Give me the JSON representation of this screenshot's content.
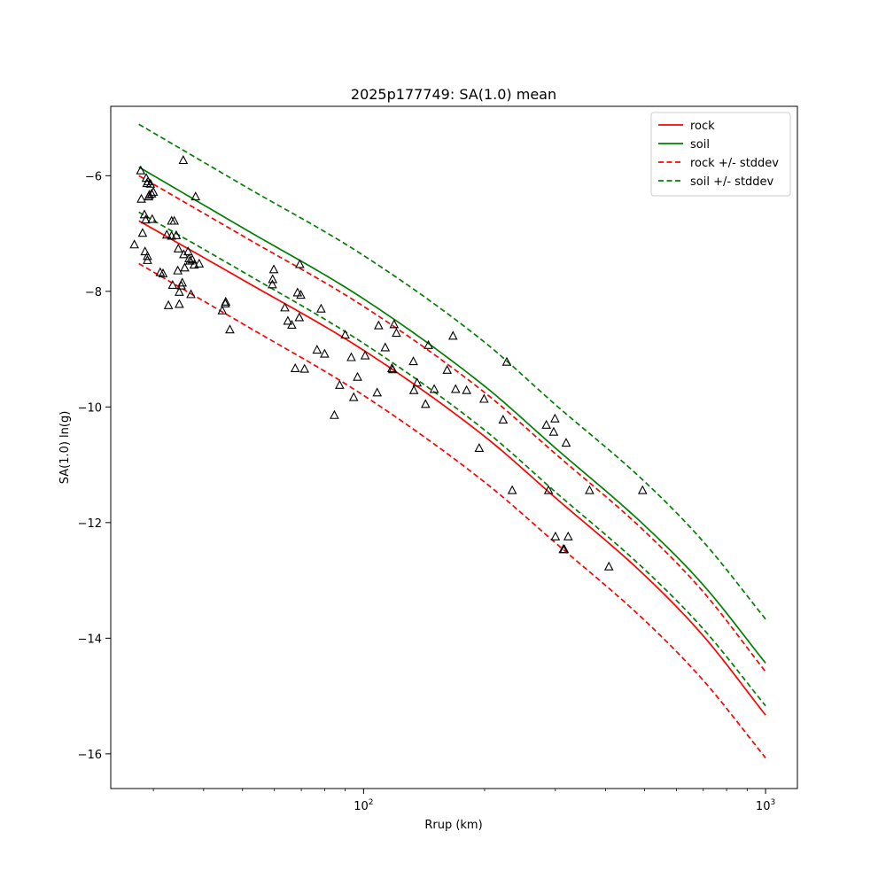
{
  "chart_data": {
    "type": "scatter",
    "title": "2025p177749: SA(1.0) mean",
    "xlabel": "Rrup (km)",
    "ylabel": "SA(1.0) ln(g)",
    "xscale": "log",
    "xlim": [
      23.5,
      1200
    ],
    "ylim": [
      -16.6,
      -4.8
    ],
    "x_ticks": [
      {
        "value": 100,
        "label": "10",
        "sup": "2"
      },
      {
        "value": 1000,
        "label": "10",
        "sup": "3"
      }
    ],
    "y_ticks": [
      {
        "value": -6,
        "label": "−6"
      },
      {
        "value": -8,
        "label": "−8"
      },
      {
        "value": -10,
        "label": "−10"
      },
      {
        "value": -12,
        "label": "−12"
      },
      {
        "value": -14,
        "label": "−14"
      },
      {
        "value": -16,
        "label": "−16"
      }
    ],
    "legend_position": "top-right",
    "grid": false,
    "lines": [
      {
        "name": "rock",
        "color": "#ff0000",
        "dash": false,
        "points": [
          [
            27.6,
            -6.78
          ],
          [
            50,
            -7.8
          ],
          [
            100,
            -9.02
          ],
          [
            200,
            -10.51
          ],
          [
            300,
            -11.57
          ],
          [
            500,
            -12.91
          ],
          [
            700,
            -13.96
          ],
          [
            1000,
            -15.33
          ]
        ]
      },
      {
        "name": "soil",
        "color": "#008000",
        "dash": false,
        "points": [
          [
            27.6,
            -5.85
          ],
          [
            50,
            -6.9
          ],
          [
            100,
            -8.13
          ],
          [
            200,
            -9.64
          ],
          [
            300,
            -10.71
          ],
          [
            500,
            -12.05
          ],
          [
            700,
            -13.08
          ],
          [
            1000,
            -14.43
          ]
        ]
      },
      {
        "name": "rock +/- stddev",
        "color": "#ff0000",
        "dash": true,
        "points": [
          [
            27.6,
            -6.0
          ],
          [
            50,
            -7.04
          ],
          [
            100,
            -8.26
          ],
          [
            200,
            -9.75
          ],
          [
            300,
            -10.81
          ],
          [
            500,
            -12.15
          ],
          [
            700,
            -13.2
          ],
          [
            1000,
            -14.58
          ]
        ]
      },
      {
        "name": "rock +/- stddev",
        "color": "#ff0000",
        "dash": true,
        "legend": false,
        "points": [
          [
            27.6,
            -7.52
          ],
          [
            50,
            -8.56
          ],
          [
            100,
            -9.8
          ],
          [
            200,
            -11.3
          ],
          [
            300,
            -12.35
          ],
          [
            500,
            -13.69
          ],
          [
            700,
            -14.73
          ],
          [
            1000,
            -16.07
          ]
        ]
      },
      {
        "name": "soil +/- stddev",
        "color": "#008000",
        "dash": true,
        "points": [
          [
            27.6,
            -5.11
          ],
          [
            50,
            -6.16
          ],
          [
            100,
            -7.38
          ],
          [
            200,
            -8.88
          ],
          [
            300,
            -9.96
          ],
          [
            500,
            -11.29
          ],
          [
            700,
            -12.33
          ],
          [
            1000,
            -13.67
          ]
        ]
      },
      {
        "name": "soil +/- stddev",
        "color": "#008000",
        "dash": true,
        "legend": false,
        "points": [
          [
            27.6,
            -6.63
          ],
          [
            50,
            -7.66
          ],
          [
            100,
            -8.9
          ],
          [
            200,
            -10.4
          ],
          [
            300,
            -11.47
          ],
          [
            500,
            -12.81
          ],
          [
            700,
            -13.84
          ],
          [
            1000,
            -15.17
          ]
        ]
      }
    ],
    "observations": {
      "marker": "triangle",
      "color": "#000000",
      "points": [
        [
          26.9,
          -7.19
        ],
        [
          27.9,
          -5.91
        ],
        [
          28.0,
          -6.4
        ],
        [
          28.2,
          -6.99
        ],
        [
          28.5,
          -6.67
        ],
        [
          28.6,
          -7.31
        ],
        [
          28.7,
          -6.76
        ],
        [
          28.8,
          -6.04
        ],
        [
          28.9,
          -6.13
        ],
        [
          29.0,
          -7.39
        ],
        [
          29.0,
          -7.46
        ],
        [
          29.1,
          -6.1
        ],
        [
          29.2,
          -6.36
        ],
        [
          29.3,
          -6.33
        ],
        [
          29.5,
          -6.14
        ],
        [
          29.7,
          -6.31
        ],
        [
          29.8,
          -6.75
        ],
        [
          30.0,
          -6.28
        ],
        [
          31.2,
          -7.67
        ],
        [
          31.7,
          -7.69
        ],
        [
          32.4,
          -7.02
        ],
        [
          32.7,
          -8.24
        ],
        [
          33.3,
          -7.04
        ],
        [
          33.3,
          -6.78
        ],
        [
          33.5,
          -7.89
        ],
        [
          33.8,
          -6.78
        ],
        [
          34.2,
          -7.03
        ],
        [
          34.5,
          -7.64
        ],
        [
          34.6,
          -7.26
        ],
        [
          34.8,
          -8.22
        ],
        [
          34.8,
          -8.01
        ],
        [
          35.2,
          -7.9
        ],
        [
          35.4,
          -7.85
        ],
        [
          35.6,
          -5.73
        ],
        [
          35.7,
          -7.36
        ],
        [
          35.9,
          -7.59
        ],
        [
          36.6,
          -7.31
        ],
        [
          36.8,
          -7.43
        ],
        [
          37.0,
          -7.47
        ],
        [
          37.2,
          -8.05
        ],
        [
          37.5,
          -7.45
        ],
        [
          37.9,
          -7.54
        ],
        [
          38.2,
          -6.36
        ],
        [
          39.0,
          -7.52
        ],
        [
          44.5,
          -8.33
        ],
        [
          45.3,
          -8.21
        ],
        [
          45.4,
          -8.18
        ],
        [
          46.5,
          -8.66
        ],
        [
          59.3,
          -7.88
        ],
        [
          59.4,
          -7.79
        ],
        [
          59.8,
          -7.62
        ],
        [
          63.7,
          -8.28
        ],
        [
          64.8,
          -8.51
        ],
        [
          66.3,
          -8.58
        ],
        [
          67.6,
          -9.33
        ],
        [
          68.5,
          -8.02
        ],
        [
          69.2,
          -8.45
        ],
        [
          69.4,
          -7.53
        ],
        [
          69.8,
          -8.06
        ],
        [
          71.3,
          -9.34
        ],
        [
          76.6,
          -9.01
        ],
        [
          78.4,
          -8.3
        ],
        [
          80.0,
          -9.08
        ],
        [
          84.6,
          -10.14
        ],
        [
          87.2,
          -9.62
        ],
        [
          90.0,
          -8.75
        ],
        [
          93.2,
          -9.14
        ],
        [
          94.5,
          -9.83
        ],
        [
          96.6,
          -9.48
        ],
        [
          100.9,
          -9.11
        ],
        [
          108.1,
          -9.75
        ],
        [
          109.0,
          -8.59
        ],
        [
          113.2,
          -8.97
        ],
        [
          117.6,
          -9.33
        ],
        [
          118.2,
          -9.35
        ],
        [
          119.1,
          -8.57
        ],
        [
          120.7,
          -8.72
        ],
        [
          133.0,
          -9.21
        ],
        [
          133.4,
          -9.71
        ],
        [
          135.9,
          -9.58
        ],
        [
          142.6,
          -9.95
        ],
        [
          145.0,
          -8.93
        ],
        [
          149.9,
          -9.69
        ],
        [
          161.4,
          -9.36
        ],
        [
          166.9,
          -8.77
        ],
        [
          169.4,
          -9.69
        ],
        [
          180.4,
          -9.71
        ],
        [
          193.9,
          -10.71
        ],
        [
          199.4,
          -9.86
        ],
        [
          222.4,
          -10.22
        ],
        [
          227.1,
          -9.22
        ],
        [
          234.3,
          -11.44
        ],
        [
          284.9,
          -10.31
        ],
        [
          288.5,
          -11.44
        ],
        [
          297.1,
          -10.43
        ],
        [
          299.3,
          -10.2
        ],
        [
          300.1,
          -12.24
        ],
        [
          313.9,
          -12.46
        ],
        [
          315.7,
          -12.46
        ],
        [
          319.1,
          -10.62
        ],
        [
          322.8,
          -12.24
        ],
        [
          364.9,
          -11.44
        ],
        [
          407.6,
          -12.76
        ],
        [
          494.4,
          -11.44
        ]
      ]
    }
  }
}
